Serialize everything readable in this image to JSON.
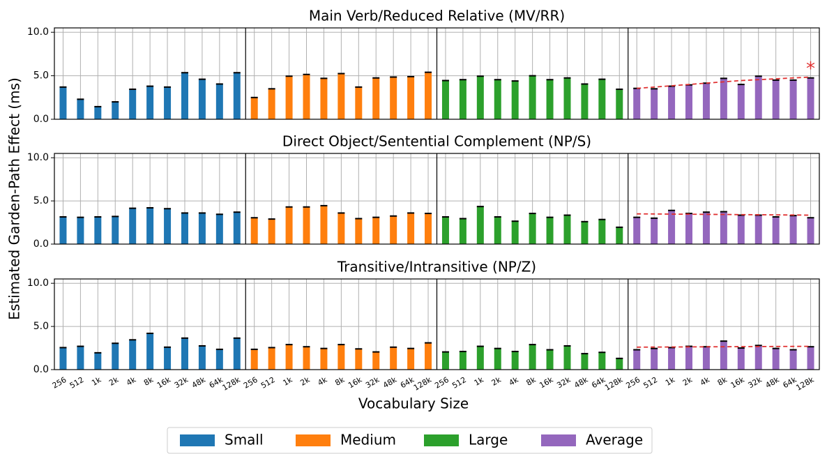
{
  "ylabel": "Estimated Garden-Path Effect (ms)",
  "xlabel": "Vocabulary Size",
  "chart_data": [
    {
      "type": "bar",
      "title": "Main Verb/Reduced Relative (MV/RR)",
      "categories": [
        "256",
        "512",
        "1k",
        "2k",
        "4k",
        "8k",
        "16k",
        "32k",
        "48k",
        "64k",
        "128k"
      ],
      "series": [
        {
          "name": "Small",
          "color": "#1f77b4",
          "values": [
            3.7,
            2.3,
            1.45,
            2.0,
            3.45,
            3.8,
            3.7,
            5.35,
            4.6,
            4.05,
            5.35
          ]
        },
        {
          "name": "Medium",
          "color": "#ff7f0e",
          "values": [
            2.5,
            3.5,
            4.95,
            5.15,
            4.7,
            5.25,
            3.7,
            4.75,
            4.85,
            4.9,
            5.4
          ]
        },
        {
          "name": "Large",
          "color": "#2ca02c",
          "values": [
            4.45,
            4.55,
            4.95,
            4.55,
            4.4,
            5.0,
            4.55,
            4.75,
            4.05,
            4.6,
            3.45
          ]
        },
        {
          "name": "Average",
          "color": "#9467bd",
          "values": [
            3.55,
            3.5,
            3.8,
            3.95,
            4.15,
            4.7,
            4.0,
            4.95,
            4.5,
            4.5,
            4.75
          ]
        }
      ],
      "trend": {
        "color": "#e03030",
        "values": [
          3.55,
          3.7,
          3.85,
          4.0,
          4.15,
          4.3,
          4.45,
          4.55,
          4.65,
          4.75,
          4.85
        ]
      },
      "annotation": "*",
      "ylim": [
        0,
        10.5
      ],
      "yticks": [
        {
          "value": 0,
          "label": "0.0"
        },
        {
          "value": 5,
          "label": "5.0"
        },
        {
          "value": 10,
          "label": "10.0"
        }
      ],
      "grid": true
    },
    {
      "type": "bar",
      "title": "Direct Object/Sentential Complement (NP/S)",
      "categories": [
        "256",
        "512",
        "1k",
        "2k",
        "4k",
        "8k",
        "16k",
        "32k",
        "48k",
        "64k",
        "128k"
      ],
      "series": [
        {
          "name": "Small",
          "color": "#1f77b4",
          "values": [
            3.15,
            3.1,
            3.15,
            3.2,
            4.15,
            4.2,
            4.1,
            3.6,
            3.6,
            3.45,
            3.7
          ]
        },
        {
          "name": "Medium",
          "color": "#ff7f0e",
          "values": [
            3.05,
            2.9,
            4.3,
            4.3,
            4.45,
            3.6,
            2.95,
            3.1,
            3.25,
            3.6,
            3.55
          ]
        },
        {
          "name": "Large",
          "color": "#2ca02c",
          "values": [
            3.15,
            2.95,
            4.35,
            3.15,
            2.65,
            3.55,
            3.1,
            3.35,
            2.6,
            2.85,
            1.95
          ]
        },
        {
          "name": "Average",
          "color": "#9467bd",
          "values": [
            3.1,
            3.0,
            3.9,
            3.55,
            3.7,
            3.75,
            3.35,
            3.35,
            3.15,
            3.3,
            3.05
          ]
        }
      ],
      "trend": {
        "color": "#e03030",
        "values": [
          3.5,
          3.49,
          3.47,
          3.46,
          3.44,
          3.43,
          3.41,
          3.4,
          3.38,
          3.37,
          3.35
        ]
      },
      "ylim": [
        0,
        10.5
      ],
      "yticks": [
        {
          "value": 0,
          "label": "0.0"
        },
        {
          "value": 5,
          "label": "5.0"
        },
        {
          "value": 10,
          "label": "10.0"
        }
      ],
      "grid": true
    },
    {
      "type": "bar",
      "title": "Transitive/Intransitive (NP/Z)",
      "categories": [
        "256",
        "512",
        "1k",
        "2k",
        "4k",
        "8k",
        "16k",
        "32k",
        "48k",
        "64k",
        "128k"
      ],
      "series": [
        {
          "name": "Small",
          "color": "#1f77b4",
          "values": [
            2.55,
            2.7,
            1.95,
            3.05,
            3.45,
            4.2,
            2.6,
            3.65,
            2.75,
            2.35,
            3.65
          ]
        },
        {
          "name": "Medium",
          "color": "#ff7f0e",
          "values": [
            2.35,
            2.55,
            2.9,
            2.65,
            2.45,
            2.9,
            2.4,
            2.05,
            2.6,
            2.45,
            3.1
          ]
        },
        {
          "name": "Large",
          "color": "#2ca02c",
          "values": [
            2.05,
            2.1,
            2.7,
            2.45,
            2.1,
            2.9,
            2.3,
            2.75,
            1.85,
            2.0,
            1.3
          ]
        },
        {
          "name": "Average",
          "color": "#9467bd",
          "values": [
            2.3,
            2.45,
            2.55,
            2.7,
            2.65,
            3.3,
            2.5,
            2.8,
            2.45,
            2.3,
            2.65
          ]
        }
      ],
      "trend": {
        "color": "#e03030",
        "values": [
          2.6,
          2.61,
          2.62,
          2.63,
          2.64,
          2.65,
          2.66,
          2.67,
          2.68,
          2.69,
          2.7
        ]
      },
      "ylim": [
        0,
        10.5
      ],
      "yticks": [
        {
          "value": 0,
          "label": "0.0"
        },
        {
          "value": 5,
          "label": "5.0"
        },
        {
          "value": 10,
          "label": "10.0"
        }
      ],
      "grid": true
    }
  ]
}
